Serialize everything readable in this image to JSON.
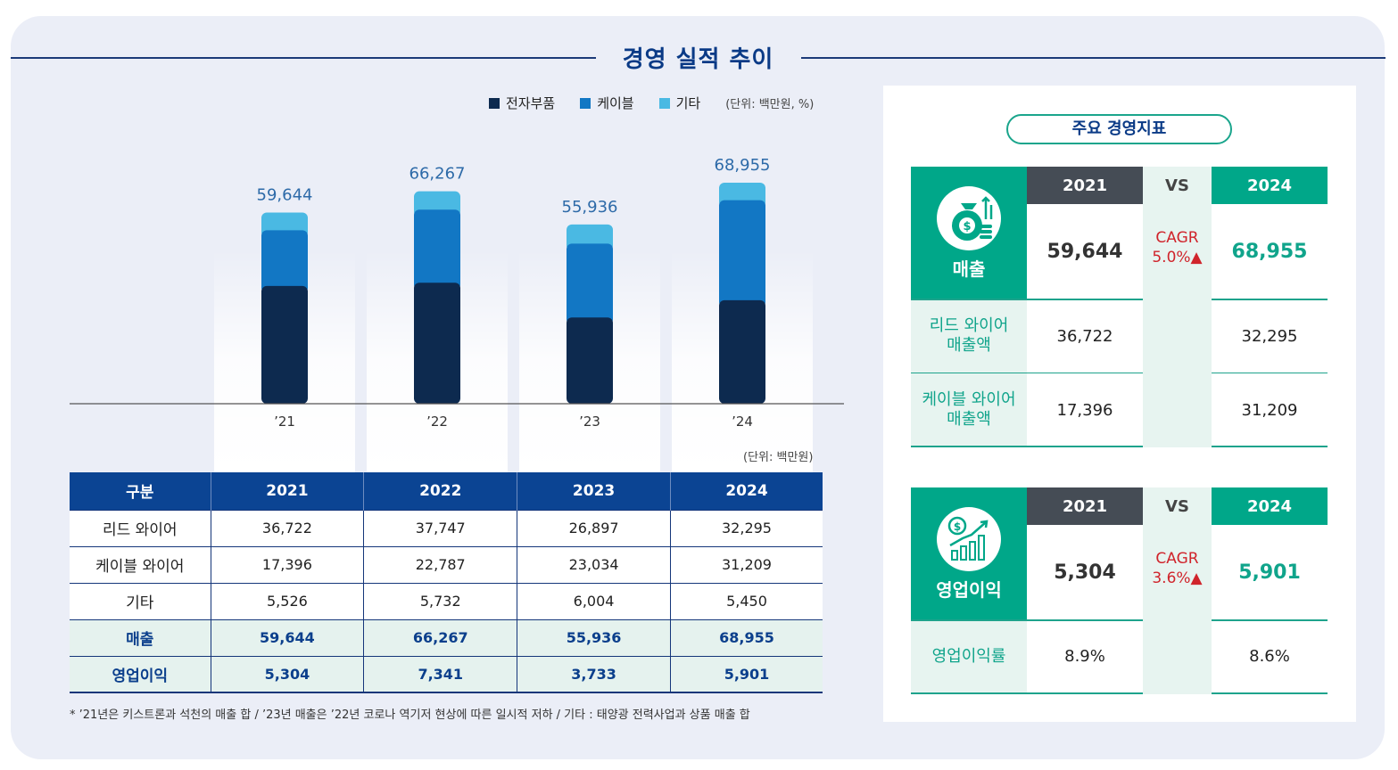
{
  "page_title": "경영 실적 추이",
  "legend": {
    "items": [
      {
        "label": "전자부품",
        "color": "#0d2a4f"
      },
      {
        "label": "케이블",
        "color": "#1277c4"
      },
      {
        "label": "기타",
        "color": "#4ab9e3"
      }
    ],
    "unit": "(단위: 백만원, %)"
  },
  "chart_data": {
    "type": "bar",
    "stacked": true,
    "categories": [
      "’21",
      "’22",
      "’23",
      "’24"
    ],
    "series": [
      {
        "name": "전자부품",
        "values": [
          36722,
          37747,
          26897,
          32295
        ],
        "color": "#0d2a4f"
      },
      {
        "name": "케이블",
        "values": [
          17396,
          22787,
          23034,
          31209
        ],
        "color": "#1277c4"
      },
      {
        "name": "기타",
        "values": [
          5526,
          5732,
          6004,
          5450
        ],
        "color": "#4ab9e3"
      }
    ],
    "totals": [
      59644,
      66267,
      55936,
      68955
    ],
    "total_labels": [
      "59,644",
      "66,267",
      "55,936",
      "68,955"
    ],
    "ylim": [
      0,
      75000
    ],
    "grid": false
  },
  "table": {
    "unit": "(단위: 백만원)",
    "headers": [
      "구분",
      "2021",
      "2022",
      "2023",
      "2024"
    ],
    "rows": [
      {
        "label": "리드 와이어",
        "values": [
          "36,722",
          "37,747",
          "26,897",
          "32,295"
        ]
      },
      {
        "label": "케이블 와이어",
        "values": [
          "17,396",
          "22,787",
          "23,034",
          "31,209"
        ]
      },
      {
        "label": "기타",
        "values": [
          "5,526",
          "5,732",
          "6,004",
          "5,450"
        ]
      },
      {
        "label": "매출",
        "values": [
          "59,644",
          "66,267",
          "55,936",
          "68,955"
        ]
      },
      {
        "label": "영업이익",
        "values": [
          "5,304",
          "7,341",
          "3,733",
          "5,901"
        ]
      }
    ],
    "footnote": "* ’21년은 키스트론과 석천의 매출 합 / ’23년 매출은 ’22년 코로나 역기저 현상에 따른 일시적 저하 / 기타 : 태양광 전력사업과 상품 매출 합"
  },
  "kpi": {
    "title": "주요 경영지표",
    "year_a": "2021",
    "vs": "VS",
    "year_b": "2024",
    "sales": {
      "label": "매출",
      "icon": "money-bag-icon",
      "value_a": "59,644",
      "cagr_label": "CAGR",
      "cagr_value": "5.0%▲",
      "value_b": "68,955",
      "subrows": [
        {
          "label_line1": "리드 와이어",
          "label_line2": "매출액",
          "value_a": "36,722",
          "value_b": "32,295"
        },
        {
          "label_line1": "케이블 와이어",
          "label_line2": "매출액",
          "value_a": "17,396",
          "value_b": "31,209"
        }
      ]
    },
    "op_profit": {
      "label": "영업이익",
      "icon": "growth-chart-icon",
      "value_a": "5,304",
      "cagr_label": "CAGR",
      "cagr_value": "3.6%▲",
      "value_b": "5,901",
      "subrow": {
        "label": "영업이익률",
        "value_a": "8.9%",
        "value_b": "8.6%"
      }
    }
  }
}
